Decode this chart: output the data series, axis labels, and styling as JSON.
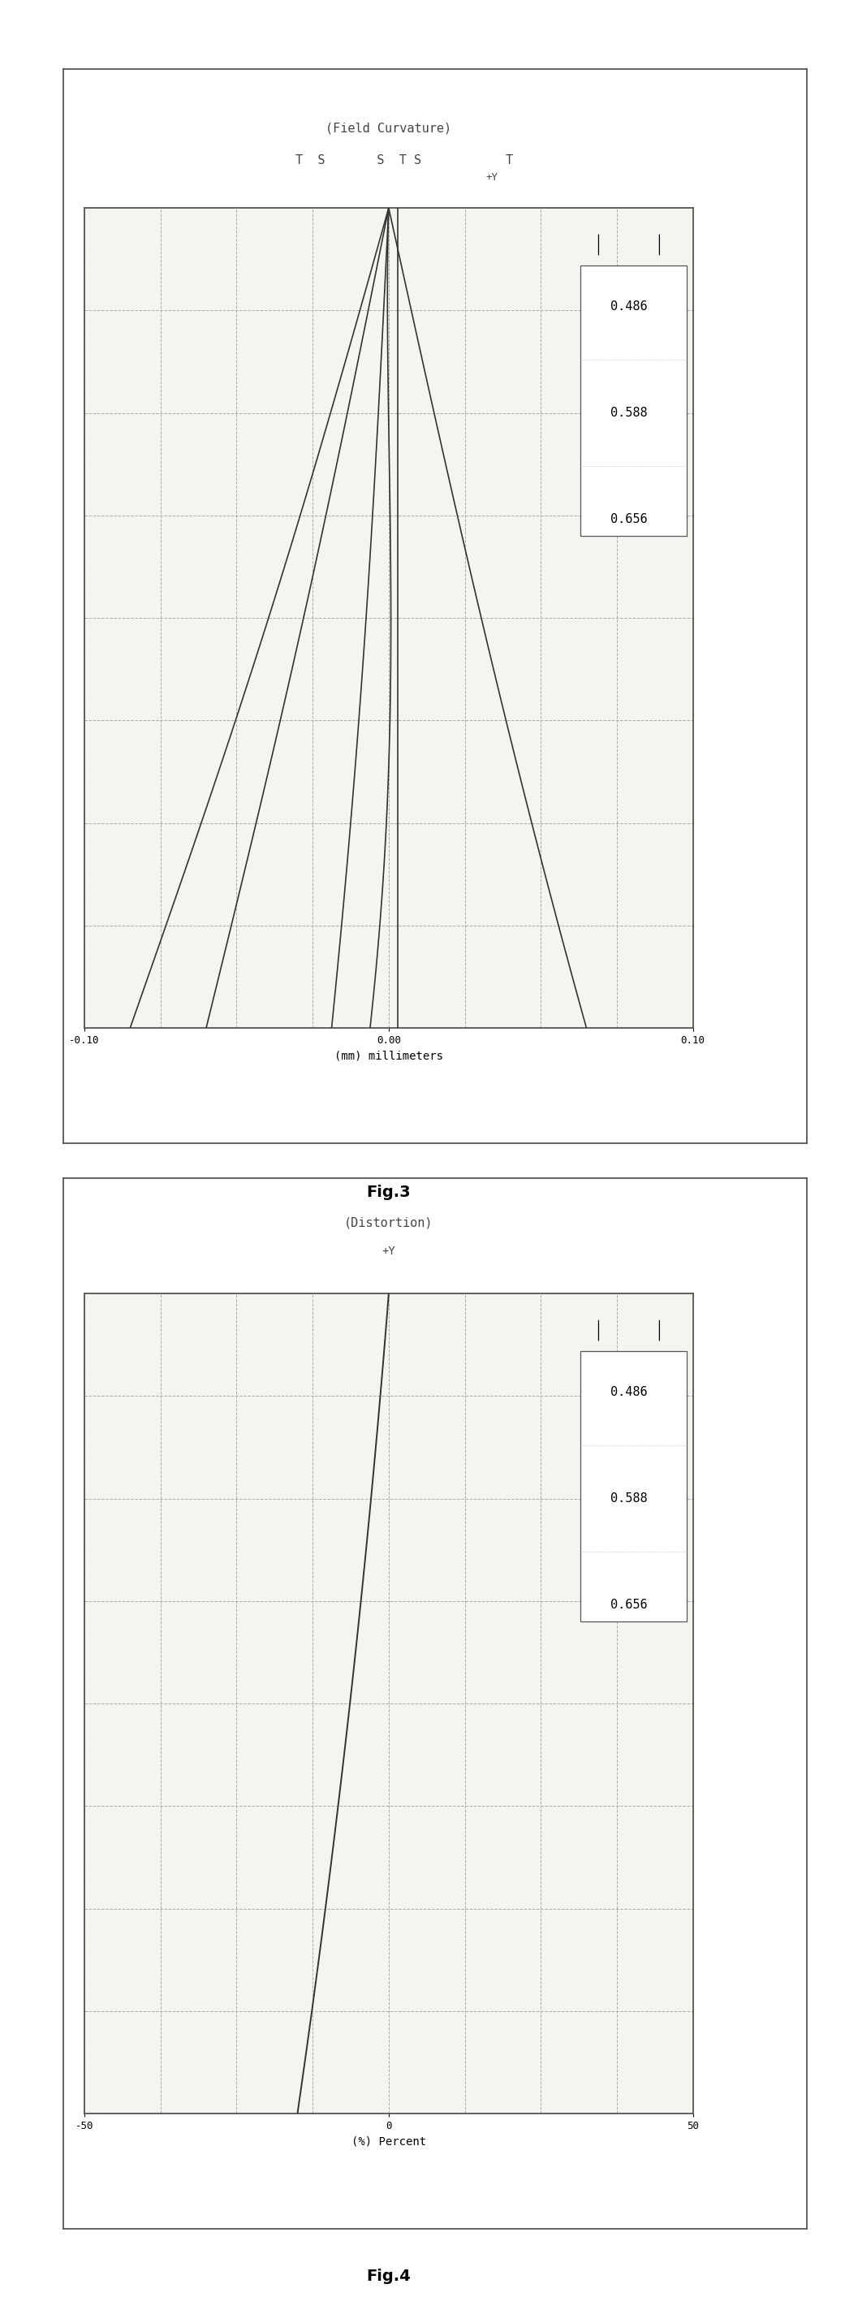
{
  "fig3": {
    "title_line1": "(Field Curvature)",
    "title_line2": "T  S       S  T S    T",
    "title_line2_sub": "+Y",
    "xlabel": "(mm) millimeters",
    "xlim": [
      -0.1,
      0.1
    ],
    "ylim": [
      0,
      1
    ],
    "xticklabels": [
      "-0.10",
      "0.00",
      "0.10"
    ],
    "xticks": [
      -0.1,
      0.0,
      0.1
    ],
    "legend_labels": [
      "0.486",
      "0.588",
      "0.656"
    ],
    "grid_nx": 8,
    "grid_ny": 8,
    "curves": [
      {
        "label": "T_486",
        "x": [
          -0.085,
          -0.07,
          -0.052,
          -0.03,
          -0.01,
          0.002,
          0.005,
          0.004,
          0.002,
          0.0
        ],
        "y": [
          1.0,
          0.88,
          0.75,
          0.6,
          0.45,
          0.3,
          0.2,
          0.1,
          0.05,
          0.0
        ],
        "color": "#333333",
        "linestyle": "-"
      },
      {
        "label": "S_486",
        "x": [
          -0.068,
          -0.058,
          -0.045,
          -0.03,
          -0.015,
          -0.003,
          0.001,
          0.002,
          0.001,
          0.0
        ],
        "y": [
          1.0,
          0.88,
          0.75,
          0.6,
          0.45,
          0.3,
          0.2,
          0.1,
          0.05,
          0.0
        ],
        "color": "#333333",
        "linestyle": "-"
      },
      {
        "label": "S_588",
        "x": [
          -0.028,
          -0.022,
          -0.015,
          -0.01,
          -0.005,
          -0.002,
          0.0,
          0.001,
          0.001,
          0.0
        ],
        "y": [
          1.0,
          0.88,
          0.75,
          0.6,
          0.45,
          0.3,
          0.2,
          0.1,
          0.05,
          0.0
        ],
        "color": "#333333",
        "linestyle": "-"
      },
      {
        "label": "T_588",
        "x": [
          -0.015,
          -0.012,
          -0.007,
          -0.002,
          0.003,
          0.006,
          0.007,
          0.006,
          0.004,
          0.0
        ],
        "y": [
          1.0,
          0.88,
          0.75,
          0.6,
          0.45,
          0.3,
          0.2,
          0.1,
          0.05,
          0.0
        ],
        "color": "#333333",
        "linestyle": "-"
      },
      {
        "label": "S_656",
        "x": [
          0.002,
          0.003,
          0.004,
          0.004,
          0.004,
          0.003,
          0.002,
          0.001,
          0.001,
          0.0
        ],
        "y": [
          1.0,
          0.88,
          0.75,
          0.6,
          0.45,
          0.3,
          0.2,
          0.1,
          0.05,
          0.0
        ],
        "color": "#333333",
        "linestyle": "-"
      },
      {
        "label": "T_656",
        "x": [
          0.075,
          0.065,
          0.05,
          0.035,
          0.022,
          0.012,
          0.007,
          0.004,
          0.002,
          0.0
        ],
        "y": [
          1.0,
          0.88,
          0.75,
          0.6,
          0.45,
          0.3,
          0.2,
          0.1,
          0.05,
          0.0
        ],
        "color": "#333333",
        "linestyle": "-"
      }
    ]
  },
  "fig4": {
    "title_line1": "(Distortion)",
    "title_line2": "+Y",
    "xlabel": "(%) Percent",
    "xlim": [
      -50,
      50
    ],
    "ylim": [
      0,
      1
    ],
    "xticklabels": [
      "-50",
      "0",
      "50"
    ],
    "xticks": [
      -50,
      0,
      50
    ],
    "legend_labels": [
      "0.486",
      "0.588",
      "0.656"
    ],
    "grid_nx": 8,
    "grid_ny": 8,
    "curves": [
      {
        "label": "distortion_all",
        "x": [
          -15,
          -10,
          -5,
          0,
          2,
          3,
          3.5,
          3.8,
          4.0
        ],
        "y": [
          1.0,
          0.88,
          0.75,
          0.6,
          0.45,
          0.3,
          0.2,
          0.1,
          0.0
        ],
        "color": "#333333",
        "linestyle": "-"
      }
    ]
  },
  "background_color": "#ffffff",
  "plot_bg_color": "#f5f5f0",
  "line_color": "#333333",
  "grid_color": "#aaaaaa",
  "border_color": "#555555",
  "fig3_caption": "Fig.3",
  "fig4_caption": "Fig.4"
}
